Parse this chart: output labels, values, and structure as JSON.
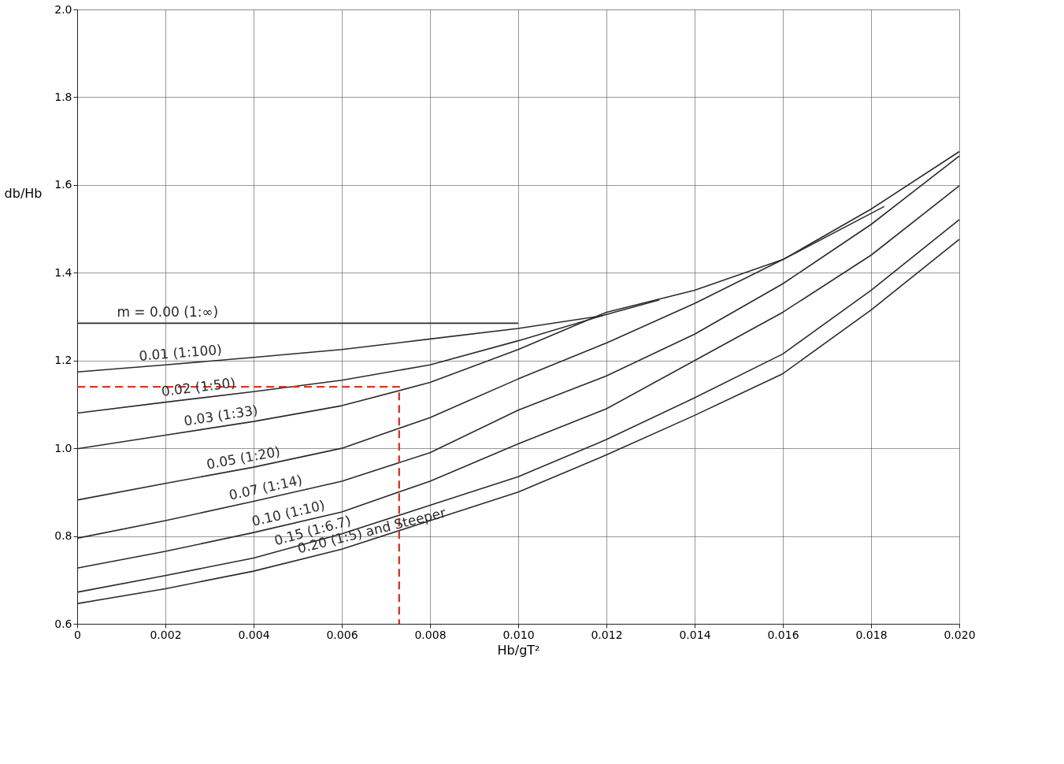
{
  "chart_data": {
    "type": "line",
    "xlabel": "Hb/gT²",
    "ylabel": "db/Hb",
    "xlim": [
      0,
      0.02
    ],
    "ylim": [
      0.6,
      2.0
    ],
    "xticks": [
      0,
      0.002,
      0.004,
      0.006,
      0.008,
      {
        "value": 0.01,
        "label": "0.010"
      },
      0.012,
      0.014,
      0.016,
      0.018,
      {
        "value": 0.02,
        "label": "0.020"
      }
    ],
    "yticks": [
      0.6,
      0.8,
      {
        "value": 1.0,
        "label": "1.0"
      },
      1.2,
      1.4,
      1.6,
      1.8,
      {
        "value": 2.0,
        "label": "2.0"
      }
    ],
    "grid": true,
    "legend": false,
    "marker": "none",
    "series": [
      {
        "name": "m = 0.00 (1:∞)",
        "color": "#2b2b2b",
        "line_style": "solid",
        "x": [
          0,
          0.002,
          0.004,
          0.006,
          0.008,
          0.01
        ],
        "values": [
          1.285,
          1.285,
          1.285,
          1.285,
          1.285,
          1.285
        ]
      },
      {
        "name": "0.01 (1:100)",
        "color": "#2b2b2b",
        "line_style": "solid",
        "x": [
          0,
          0.002,
          0.004,
          0.006,
          0.008,
          0.01,
          0.0119
        ],
        "values": [
          1.174,
          1.19,
          1.207,
          1.225,
          1.249,
          1.273,
          1.302
        ]
      },
      {
        "name": "0.02 (1:50)",
        "color": "#2b2b2b",
        "line_style": "solid",
        "x": [
          0,
          0.002,
          0.004,
          0.006,
          0.008,
          0.01,
          0.012,
          0.0132
        ],
        "values": [
          1.08,
          1.105,
          1.129,
          1.155,
          1.19,
          1.245,
          1.305,
          1.338
        ]
      },
      {
        "name": "0.03 (1:33)",
        "color": "#2b2b2b",
        "line_style": "solid",
        "x": [
          0,
          0.002,
          0.004,
          0.006,
          0.008,
          0.01,
          0.012,
          0.014,
          0.016,
          0.0183
        ],
        "values": [
          0.999,
          1.03,
          1.061,
          1.097,
          1.15,
          1.225,
          1.31,
          1.36,
          1.43,
          1.551
        ]
      },
      {
        "name": "0.05 (1:20)",
        "color": "#2b2b2b",
        "line_style": "solid",
        "x": [
          0,
          0.002,
          0.004,
          0.006,
          0.008,
          0.01,
          0.012,
          0.014,
          0.016,
          0.018,
          0.02
        ],
        "values": [
          0.882,
          0.92,
          0.957,
          1.0,
          1.07,
          1.158,
          1.24,
          1.33,
          1.43,
          1.545,
          1.676
        ]
      },
      {
        "name": "0.07 (1:14)",
        "color": "#2b2b2b",
        "line_style": "solid",
        "x": [
          0,
          0.002,
          0.004,
          0.006,
          0.008,
          0.01,
          0.012,
          0.014,
          0.016,
          0.018,
          0.02
        ],
        "values": [
          0.795,
          0.835,
          0.879,
          0.925,
          0.99,
          1.087,
          1.165,
          1.26,
          1.375,
          1.51,
          1.666
        ]
      },
      {
        "name": "0.10 (1:10)",
        "color": "#2b2b2b",
        "line_style": "solid",
        "x": [
          0,
          0.002,
          0.004,
          0.006,
          0.008,
          0.01,
          0.012,
          0.014,
          0.016,
          0.018,
          0.02
        ],
        "values": [
          0.727,
          0.765,
          0.808,
          0.855,
          0.925,
          1.01,
          1.09,
          1.2,
          1.31,
          1.44,
          1.598
        ]
      },
      {
        "name": "0.15 (1:6.7)",
        "color": "#2b2b2b",
        "line_style": "solid",
        "x": [
          0,
          0.002,
          0.004,
          0.006,
          0.008,
          0.01,
          0.012,
          0.014,
          0.016,
          0.018,
          0.02
        ],
        "values": [
          0.672,
          0.71,
          0.75,
          0.805,
          0.87,
          0.935,
          1.02,
          1.115,
          1.215,
          1.36,
          1.521
        ]
      },
      {
        "name": "0.20 (1:5) and Steeper",
        "color": "#2b2b2b",
        "line_style": "solid",
        "x": [
          0,
          0.002,
          0.004,
          0.006,
          0.008,
          0.01,
          0.012,
          0.014,
          0.016,
          0.018,
          0.02
        ],
        "values": [
          0.646,
          0.68,
          0.72,
          0.77,
          0.835,
          0.9,
          0.985,
          1.075,
          1.17,
          1.315,
          1.476
        ]
      },
      {
        "color": "#e8321e",
        "line_style": "dashed",
        "x": [
          0,
          0.0073,
          0.0073
        ],
        "values": [
          1.14,
          1.14,
          0.6
        ]
      }
    ]
  }
}
